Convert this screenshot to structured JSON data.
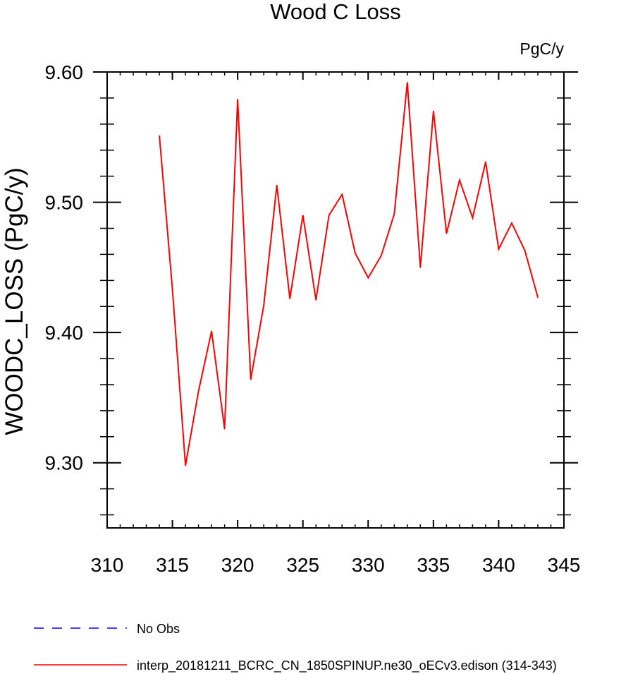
{
  "chart_data": {
    "type": "line",
    "title": "Wood C Loss",
    "units_label": "PgC/y",
    "ylabel": "WOODC_LOSS  (PgC/y)",
    "xlabel": "",
    "xlim": [
      310,
      345
    ],
    "ylim": [
      9.25,
      9.6
    ],
    "x_ticks": [
      310,
      315,
      320,
      325,
      330,
      335,
      340,
      345
    ],
    "x_tick_labels": [
      "310",
      "315",
      "320",
      "325",
      "330",
      "335",
      "340",
      "345"
    ],
    "y_ticks": [
      9.3,
      9.4,
      9.5,
      9.6
    ],
    "y_tick_labels": [
      "9.30",
      "9.40",
      "9.50",
      "9.60"
    ],
    "grid": false,
    "series": [
      {
        "name": "interp_20181211_BCRC_CN_1850SPINUP.ne30_oECv3.edison (314-343)",
        "color": "#ff0000",
        "dash": "solid",
        "x": [
          314,
          315,
          316,
          317,
          318,
          319,
          320,
          321,
          322,
          323,
          324,
          325,
          326,
          327,
          328,
          329,
          330,
          331,
          332,
          333,
          334,
          335,
          336,
          337,
          338,
          339,
          340,
          341,
          342,
          343
        ],
        "values": [
          9.551,
          9.433,
          9.298,
          9.355,
          9.401,
          9.326,
          9.579,
          9.364,
          9.421,
          9.513,
          9.426,
          9.49,
          9.425,
          9.49,
          9.506,
          9.461,
          9.442,
          9.459,
          9.491,
          9.592,
          9.45,
          9.57,
          9.476,
          9.517,
          9.488,
          9.531,
          9.464,
          9.484,
          9.463,
          9.427
        ]
      }
    ],
    "legend": {
      "placement": "bottom-left",
      "entries": [
        {
          "label": "No Obs",
          "color": "#0000ff",
          "dash": "dashed"
        },
        {
          "label": "interp_20181211_BCRC_CN_1850SPINUP.ne30_oECv3.edison (314-343)",
          "color": "#ff0000",
          "dash": "solid"
        }
      ]
    }
  }
}
